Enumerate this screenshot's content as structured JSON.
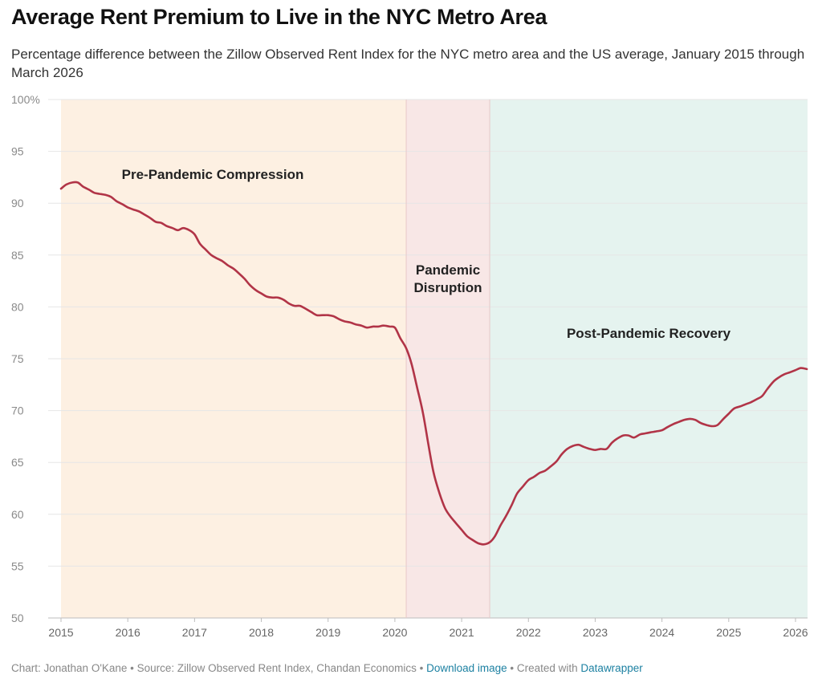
{
  "header": {
    "title": "Average Rent Premium to Live in the NYC Metro Area",
    "subtitle": "Percentage difference between the Zillow Observed Rent Index for the NYC metro area and the US average, January 2015 through March 2026"
  },
  "footer": {
    "chart_credit": "Chart: Jonathan O'Kane",
    "sep1": " • ",
    "source": "Source: Zillow Observed Rent Index, Chandan Economics",
    "sep2": " • ",
    "download_link": "Download image",
    "sep3": " • ",
    "created_with": "Created with ",
    "datawrapper_link": "Datawrapper"
  },
  "colors": {
    "line": "#b13447",
    "band_pre": "#fdf0e2",
    "band_pandemic": "#f8e7e6",
    "band_post": "#e5f3ef",
    "gridline": "#e6e6e6",
    "link": "#1d81a2"
  },
  "chart_data": {
    "type": "line",
    "title": "Average Rent Premium to Live in the NYC Metro Area",
    "xlabel": "",
    "ylabel": "",
    "xlim": [
      2015.0,
      2026.25
    ],
    "ylim": [
      50,
      100
    ],
    "x_ticks": [
      "2015",
      "2016",
      "2017",
      "2018",
      "2019",
      "2020",
      "2021",
      "2022",
      "2023",
      "2024",
      "2025",
      "2026"
    ],
    "y_ticks": [
      "50",
      "55",
      "60",
      "65",
      "70",
      "75",
      "80",
      "85",
      "90",
      "95",
      "100%"
    ],
    "y_tick_values": [
      50,
      55,
      60,
      65,
      70,
      75,
      80,
      85,
      90,
      95,
      100
    ],
    "grid": true,
    "legend": "none",
    "bands": [
      {
        "label": "Pre-Pandemic Compression",
        "start": 2015.0,
        "end": 2020.17,
        "color_key": "band_pre",
        "label_lines": [
          "Pre-Pandemic Compression"
        ]
      },
      {
        "label": "Pandemic Disruption",
        "start": 2020.17,
        "end": 2021.42,
        "color_key": "band_pandemic",
        "label_lines": [
          "Pandemic",
          "Disruption"
        ]
      },
      {
        "label": "Post-Pandemic Recovery",
        "start": 2021.42,
        "end": 2026.17,
        "color_key": "band_post",
        "label_lines": [
          "Post-Pandemic Recovery"
        ]
      }
    ],
    "series": [
      {
        "x": [
          2015.0,
          2015.08,
          2015.17,
          2015.25,
          2015.33,
          2015.42,
          2015.5,
          2015.58,
          2015.67,
          2015.75,
          2015.83,
          2015.92,
          2016.0,
          2016.08,
          2016.17,
          2016.25,
          2016.33,
          2016.42,
          2016.5,
          2016.58,
          2016.67,
          2016.75,
          2016.83,
          2016.92,
          2017.0,
          2017.08,
          2017.17,
          2017.25,
          2017.33,
          2017.42,
          2017.5,
          2017.58,
          2017.67,
          2017.75,
          2017.83,
          2017.92,
          2018.0,
          2018.08,
          2018.17,
          2018.25,
          2018.33,
          2018.42,
          2018.5,
          2018.58,
          2018.67,
          2018.75,
          2018.83,
          2018.92,
          2019.0,
          2019.08,
          2019.17,
          2019.25,
          2019.33,
          2019.42,
          2019.5,
          2019.58,
          2019.67,
          2019.75,
          2019.83,
          2019.92,
          2020.0,
          2020.08,
          2020.17,
          2020.25,
          2020.33,
          2020.42,
          2020.5,
          2020.58,
          2020.67,
          2020.75,
          2020.83,
          2020.92,
          2021.0,
          2021.08,
          2021.17,
          2021.25,
          2021.33,
          2021.42,
          2021.5,
          2021.58,
          2021.67,
          2021.75,
          2021.83,
          2021.92,
          2022.0,
          2022.08,
          2022.17,
          2022.25,
          2022.33,
          2022.42,
          2022.5,
          2022.58,
          2022.67,
          2022.75,
          2022.83,
          2022.92,
          2023.0,
          2023.08,
          2023.17,
          2023.25,
          2023.33,
          2023.42,
          2023.5,
          2023.58,
          2023.67,
          2023.75,
          2023.83,
          2023.92,
          2024.0,
          2024.08,
          2024.17,
          2024.25,
          2024.33,
          2024.42,
          2024.5,
          2024.58,
          2024.67,
          2024.75,
          2024.83,
          2024.92,
          2025.0,
          2025.08,
          2025.17,
          2025.25,
          2025.33,
          2025.42,
          2025.5,
          2025.58,
          2025.67,
          2025.75,
          2025.83,
          2025.92,
          2026.0,
          2026.08,
          2026.17
        ],
        "values": [
          91.4,
          91.8,
          92.0,
          92.0,
          91.6,
          91.3,
          91.0,
          90.9,
          90.8,
          90.6,
          90.2,
          89.9,
          89.6,
          89.4,
          89.2,
          88.9,
          88.6,
          88.2,
          88.1,
          87.8,
          87.6,
          87.4,
          87.6,
          87.4,
          87.0,
          86.1,
          85.5,
          85.0,
          84.7,
          84.4,
          84.0,
          83.7,
          83.2,
          82.7,
          82.1,
          81.6,
          81.3,
          81.0,
          80.9,
          80.9,
          80.7,
          80.3,
          80.1,
          80.1,
          79.8,
          79.5,
          79.2,
          79.2,
          79.2,
          79.1,
          78.8,
          78.6,
          78.5,
          78.3,
          78.2,
          78.0,
          78.1,
          78.1,
          78.2,
          78.1,
          78.0,
          77.0,
          76.0,
          74.5,
          72.3,
          69.8,
          66.8,
          64.0,
          62.0,
          60.6,
          59.8,
          59.1,
          58.5,
          57.9,
          57.5,
          57.2,
          57.1,
          57.3,
          57.9,
          58.9,
          59.9,
          60.9,
          62.0,
          62.7,
          63.3,
          63.6,
          64.0,
          64.2,
          64.6,
          65.1,
          65.8,
          66.3,
          66.6,
          66.7,
          66.5,
          66.3,
          66.2,
          66.3,
          66.3,
          66.9,
          67.3,
          67.6,
          67.6,
          67.4,
          67.7,
          67.8,
          67.9,
          68.0,
          68.1,
          68.4,
          68.7,
          68.9,
          69.1,
          69.2,
          69.1,
          68.8,
          68.6,
          68.5,
          68.6,
          69.2,
          69.7,
          70.2,
          70.4,
          70.6,
          70.8,
          71.1,
          71.4,
          72.1,
          72.8,
          73.2,
          73.5,
          73.7,
          73.9,
          74.1,
          74.0
        ]
      }
    ]
  }
}
